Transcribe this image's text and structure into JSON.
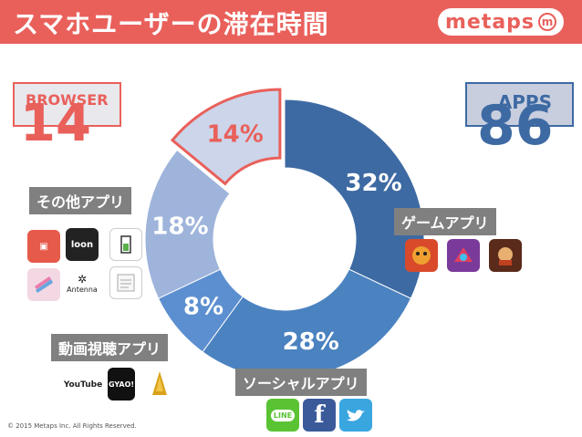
{
  "header": {
    "title": "スマホユーザーの滞在時間",
    "logo": "metaps",
    "logo_mark": "m"
  },
  "browser": {
    "label": "BROWSER",
    "value": "14"
  },
  "apps": {
    "label": "APPS",
    "value": "86"
  },
  "categories": {
    "other": "その他アプリ",
    "video": "動画視聴アプリ",
    "game": "ゲームアプリ",
    "social": "ソーシャルアプリ"
  },
  "icons": {
    "other": [
      "box-app-icon",
      "toon-app-icon",
      "battery-app-icon",
      "stationery-app-icon",
      "antenna-app-icon",
      "notes-app-icon"
    ],
    "antenna_label": "Antenna",
    "toon_label": "loon",
    "video": [
      "youtube-icon",
      "gyao-icon",
      "niconico-icon"
    ],
    "youtube_label": "YouTube",
    "gyao_label": "GYAO!",
    "game": [
      "monster-strike-icon",
      "puzzle-dragons-icon",
      "game-character-icon"
    ],
    "social": [
      "line-icon",
      "facebook-icon",
      "twitter-icon"
    ],
    "line_label": "LINE"
  },
  "colors": {
    "header": "#e9605b",
    "game": "#3e6aa3",
    "social": "#4b82c0",
    "video": "#5c8fd0",
    "other": "#9fb4db",
    "browser": "#ccd5ea",
    "browser_stroke": "#e9605b"
  },
  "chart_data": {
    "type": "pie",
    "donut": true,
    "title": "スマホユーザーの滞在時間",
    "slices": [
      {
        "label": "ゲームアプリ",
        "value": 32,
        "text": "32%"
      },
      {
        "label": "ソーシャルアプリ",
        "value": 28,
        "text": "28%"
      },
      {
        "label": "動画視聴アプリ",
        "value": 8,
        "text": "8%"
      },
      {
        "label": "その他アプリ",
        "value": 18,
        "text": "18%"
      },
      {
        "label": "BROWSER",
        "value": 14,
        "text": "14%"
      }
    ]
  },
  "copyright": "© 2015 Metaps Inc. All Rights Reserved."
}
